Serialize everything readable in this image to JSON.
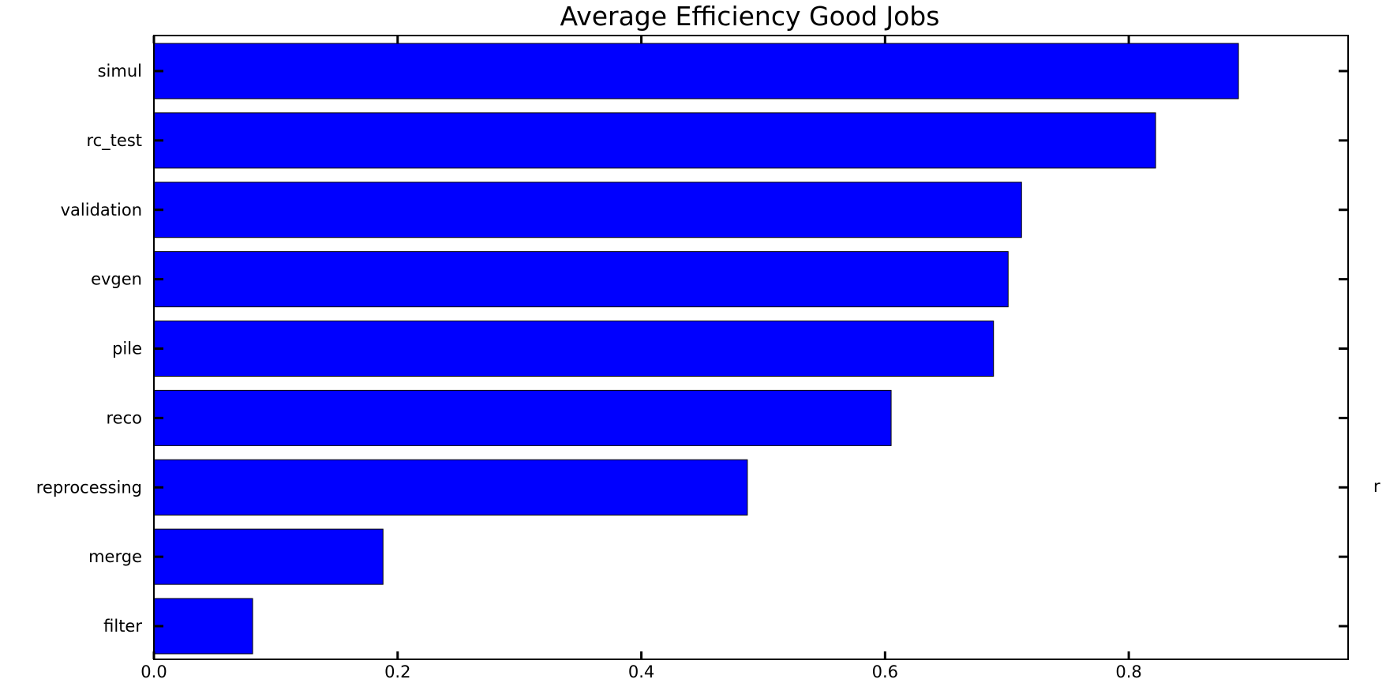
{
  "chart_data": {
    "type": "bar",
    "orientation": "horizontal",
    "title": "Average Efficiency Good Jobs",
    "categories": [
      "simul",
      "rc_test",
      "validation",
      "evgen",
      "pile",
      "reco",
      "reprocessing",
      "merge",
      "filter"
    ],
    "values": [
      0.89,
      0.822,
      0.712,
      0.701,
      0.689,
      0.605,
      0.487,
      0.188,
      0.081
    ],
    "xlim": [
      0,
      0.98
    ],
    "xticks": [
      0.0,
      0.2,
      0.4,
      0.6,
      0.8
    ],
    "xtick_labels": [
      "0.0",
      "0.2",
      "0.4",
      "0.6",
      "0.8"
    ],
    "right_edge_label": "r",
    "colors": {
      "bar": "#0000ff",
      "edge": "#000000"
    },
    "grid": false
  }
}
